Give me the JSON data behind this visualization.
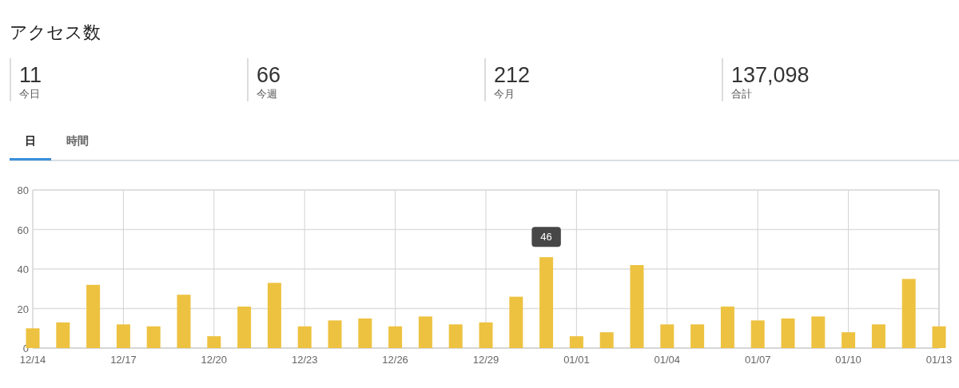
{
  "chart_data": [
    {
      "type": "other",
      "title": "アクセス数",
      "categories": [
        "今日",
        "今週",
        "今月",
        "合計"
      ],
      "value_labels": [
        "11",
        "66",
        "212",
        "137,098"
      ]
    },
    {
      "type": "bar",
      "annotations": [
        "日",
        "時間"
      ],
      "categories": [
        "12/14",
        null,
        null,
        "12/17",
        null,
        null,
        "12/20",
        null,
        null,
        "12/23",
        null,
        null,
        "12/26",
        null,
        null,
        "12/29",
        null,
        null,
        "01/01",
        null,
        null,
        "01/04",
        null,
        null,
        "01/07",
        null,
        null,
        "01/10",
        null,
        null,
        "01/13"
      ],
      "values": [
        10,
        13,
        32,
        12,
        11,
        27,
        6,
        21,
        33,
        11,
        14,
        15,
        11,
        16,
        12,
        13,
        26,
        46,
        6,
        8,
        42,
        12,
        12,
        21,
        14,
        15,
        16,
        8,
        12,
        35,
        11
      ],
      "value_labels": [
        null,
        null,
        null,
        null,
        null,
        null,
        null,
        null,
        null,
        null,
        null,
        null,
        null,
        null,
        null,
        null,
        null,
        "46",
        null,
        null,
        null,
        null,
        null,
        null,
        null,
        null,
        null,
        null,
        null,
        null,
        null
      ],
      "color": "#edc240",
      "ylim": [
        0,
        80
      ],
      "yticks": [
        0,
        20,
        40,
        60,
        80
      ],
      "grid": true
    }
  ]
}
